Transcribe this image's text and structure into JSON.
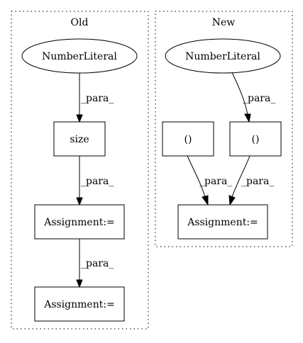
{
  "colors": {
    "background": "#ffffff",
    "stroke": "#000000",
    "text": "#000000"
  },
  "clusters": {
    "old": {
      "title": "Old"
    },
    "new": {
      "title": "New"
    }
  },
  "nodes": {
    "old_number_literal": {
      "label": "NumberLiteral",
      "shape": "ellipse"
    },
    "old_size": {
      "label": "size",
      "shape": "box"
    },
    "old_assignment_1": {
      "label": "Assignment:=",
      "shape": "box"
    },
    "old_assignment_2": {
      "label": "Assignment:=",
      "shape": "box"
    },
    "new_number_literal": {
      "label": "NumberLiteral",
      "shape": "ellipse"
    },
    "new_paren_left": {
      "label": "()",
      "shape": "box"
    },
    "new_paren_right": {
      "label": "()",
      "shape": "box"
    },
    "new_assignment": {
      "label": "Assignment:=",
      "shape": "box"
    }
  },
  "edges": {
    "old_literal_to_size": {
      "label": "_para_"
    },
    "old_size_to_assignment": {
      "label": "_para_"
    },
    "old_assignment_to_assignment": {
      "label": "_para_"
    },
    "new_literal_to_paren_right": {
      "label": "_para_"
    },
    "new_paren_left_to_assignment": {
      "label": "_para_"
    },
    "new_paren_right_to_assignment": {
      "label": "_para_"
    }
  }
}
